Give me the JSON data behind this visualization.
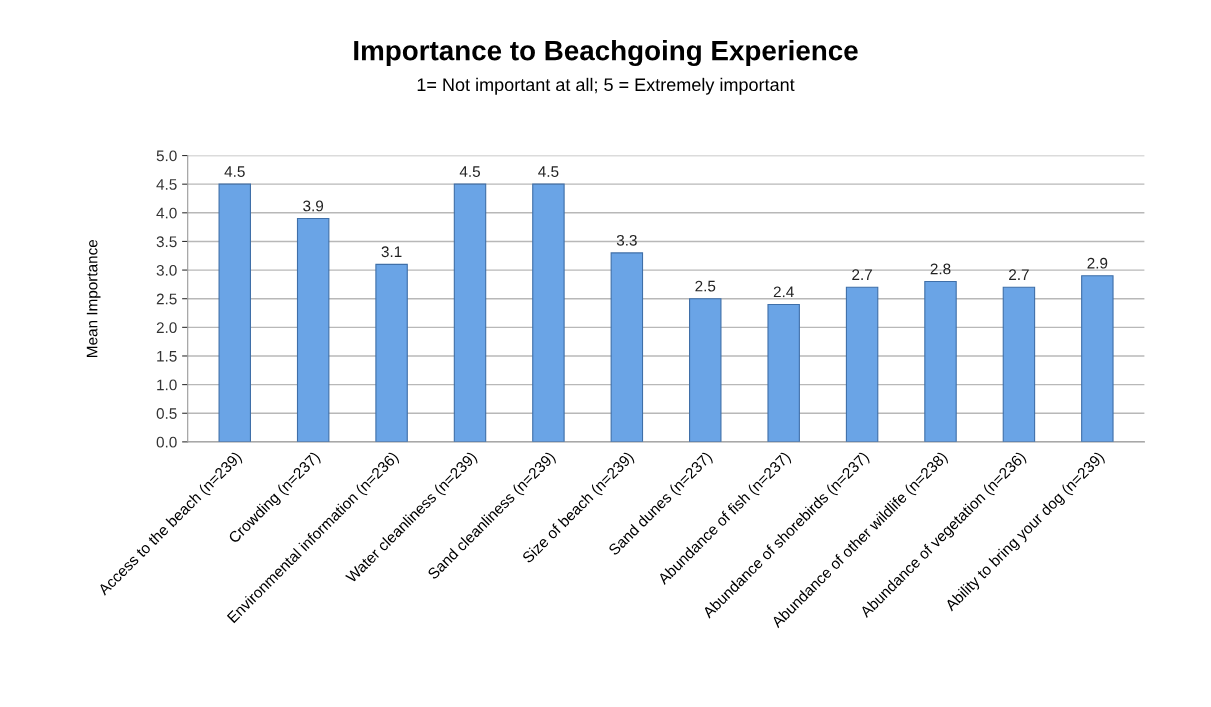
{
  "chart_data": {
    "type": "bar",
    "title": "Importance to Beachgoing Experience",
    "subtitle": "1= Not important at all; 5 = Extremely important",
    "ylabel": "Mean Importance",
    "categories": [
      "Access to the beach (n=239)",
      "Crowding (n=237)",
      "Environmental information (n=236)",
      "Water cleanliness (n=239)",
      "Sand cleanliness (n=239)",
      "Size of beach (n=239)",
      "Sand dunes (n=237)",
      "Abundance of fish (n=237)",
      "Abundance of shorebirds (n=237)",
      "Abundance of other wildlife (n=238)",
      "Abundance of vegetation (n=236)",
      "Ability to bring your dog (n=239)"
    ],
    "values": [
      4.5,
      3.9,
      3.1,
      4.5,
      4.5,
      3.3,
      2.5,
      2.4,
      2.7,
      2.8,
      2.7,
      2.9
    ],
    "color": "#6aa4e6",
    "ylim": [
      0,
      5
    ],
    "yticks": [
      {
        "value": 0,
        "label": "0.0"
      },
      {
        "value": 0.5,
        "label": "0.5"
      },
      {
        "value": 1,
        "label": "1.0"
      },
      {
        "value": 1.5,
        "label": "1.5"
      },
      {
        "value": 2,
        "label": "2.0"
      },
      {
        "value": 2.5,
        "label": "2.5"
      },
      {
        "value": 3,
        "label": "3.0"
      },
      {
        "value": 3.5,
        "label": "3.5"
      },
      {
        "value": 4,
        "label": "4.0"
      },
      {
        "value": 4.5,
        "label": "4.5"
      },
      {
        "value": 5,
        "label": "5.0"
      }
    ],
    "grid": "y",
    "data_labels": true,
    "legend": false
  }
}
